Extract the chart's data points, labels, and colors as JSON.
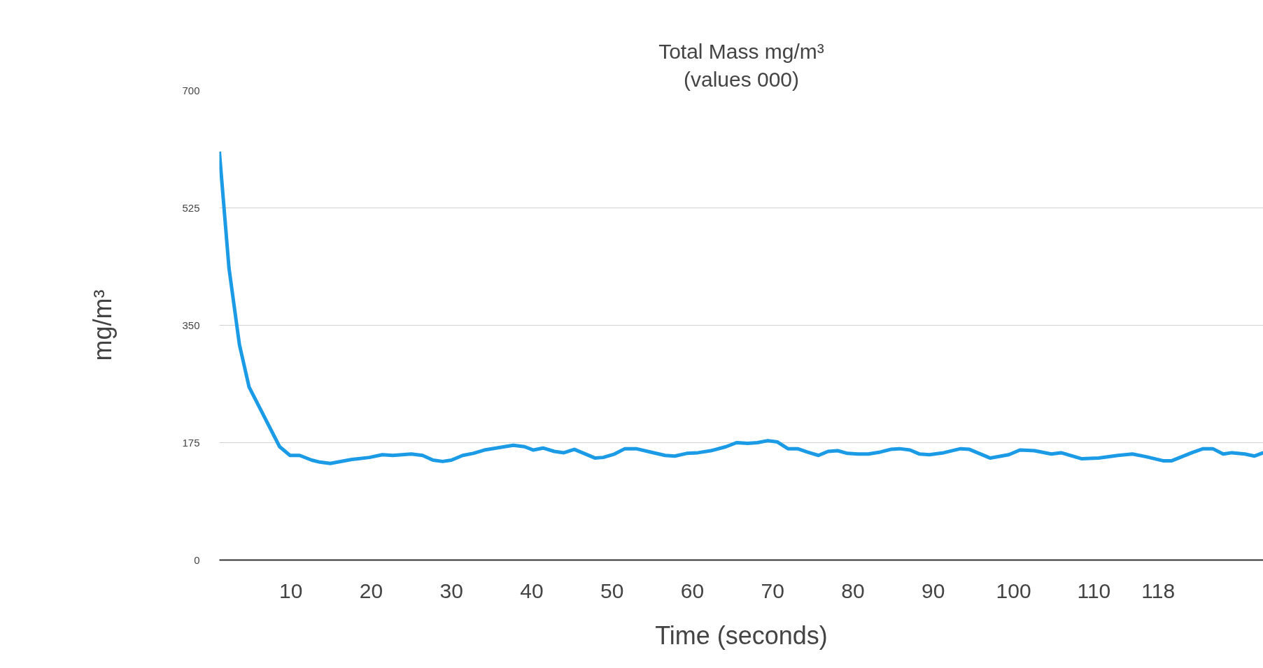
{
  "chart_data": {
    "type": "line",
    "title": "Total Mass mg/m³",
    "subtitle": "(values 000)",
    "xlabel": "Time (seconds)",
    "ylabel": "mg/m³",
    "x": [
      1.1,
      2.3,
      3.6,
      4.8,
      8.6,
      9.9,
      11.1,
      12.6,
      13.6,
      14.9,
      17.6,
      19.8,
      21.4,
      22.7,
      25.0,
      26.4,
      27.7,
      28.9,
      30.0,
      31.4,
      32.7,
      34.1,
      36.1,
      37.7,
      39.1,
      40.2,
      41.4,
      42.8,
      44.0,
      45.3,
      46.5,
      47.9,
      48.9,
      50.3,
      51.6,
      53.0,
      54.8,
      56.6,
      57.8,
      59.3,
      60.7,
      62.3,
      64.2,
      65.5,
      66.9,
      68.1,
      69.4,
      70.6,
      71.9,
      73.1,
      74.3,
      75.7,
      76.9,
      78.1,
      79.3,
      80.6,
      81.9,
      83.4,
      84.7,
      85.8,
      87.1,
      88.3,
      89.5,
      91.3,
      93.4,
      94.5,
      97.1,
      99.4,
      100.8,
      102.6,
      104.7,
      105.9,
      108.5,
      110.6,
      113.0,
      114.8,
      116.5,
      118.6,
      119.7,
      122.2,
      123.6,
      124.8,
      126.1,
      127.2,
      128.8,
      130.0,
      131.1
    ],
    "series": [
      {
        "color": "#1b9be6",
        "values": [
          609,
          435,
          321,
          258,
          169,
          156,
          156,
          149,
          146,
          144,
          150,
          153,
          157,
          156,
          158,
          156,
          149,
          147,
          149,
          156,
          159,
          164,
          168,
          171,
          169,
          164,
          167,
          162,
          160,
          165,
          159,
          152,
          153,
          158,
          166,
          166,
          161,
          156,
          155,
          159,
          160,
          163,
          169,
          175,
          174,
          175,
          178,
          176,
          166,
          166,
          161,
          156,
          162,
          163,
          159,
          158,
          158,
          161,
          165,
          166,
          164,
          158,
          157,
          160,
          166,
          165,
          152,
          157,
          164,
          163,
          158,
          160,
          151,
          152,
          156,
          158,
          154,
          148,
          148,
          160,
          166,
          166,
          158,
          160,
          158,
          155,
          160
        ]
      }
    ],
    "xlim": [
      1.1,
      131.1
    ],
    "ylim": [
      0,
      700
    ],
    "xticks": [
      10,
      20,
      30,
      40,
      50,
      60,
      70,
      80,
      90,
      100,
      110,
      118
    ],
    "yticks": [
      0,
      175,
      350,
      525,
      700
    ],
    "grid": "y"
  }
}
